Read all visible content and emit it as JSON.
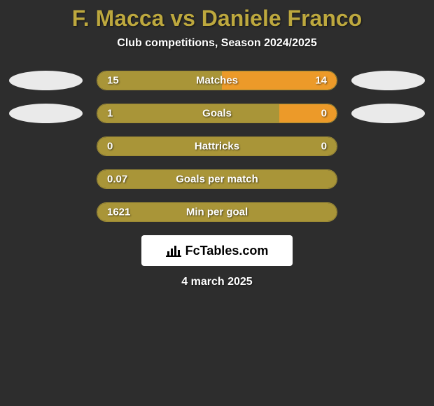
{
  "title": "F. Macca vs Daniele Franco",
  "subtitle": "Club competitions, Season 2024/2025",
  "date": "4 march 2025",
  "brand": {
    "name": "FcTables.com"
  },
  "colors": {
    "accent_left": "#a99538",
    "accent_right": "#ec9a29",
    "bar_border": "#9c8a35",
    "background": "#2d2d2d",
    "avatar_bg": "#eaeaea",
    "text": "#ffffff"
  },
  "stats": [
    {
      "label": "Matches",
      "left_value": "15",
      "right_value": "14",
      "left_pct": 52,
      "right_pct": 48,
      "left_color": "#a99538",
      "right_color": "#ec9a29",
      "show_avatars": true
    },
    {
      "label": "Goals",
      "left_value": "1",
      "right_value": "0",
      "left_pct": 76,
      "right_pct": 24,
      "left_color": "#a99538",
      "right_color": "#ec9a29",
      "show_avatars": true
    },
    {
      "label": "Hattricks",
      "left_value": "0",
      "right_value": "0",
      "left_pct": 100,
      "right_pct": 0,
      "left_color": "#a99538",
      "right_color": "#ec9a29",
      "show_avatars": false
    },
    {
      "label": "Goals per match",
      "left_value": "0.07",
      "right_value": "",
      "left_pct": 100,
      "right_pct": 0,
      "left_color": "#a99538",
      "right_color": "#ec9a29",
      "show_avatars": false
    },
    {
      "label": "Min per goal",
      "left_value": "1621",
      "right_value": "",
      "left_pct": 100,
      "right_pct": 0,
      "left_color": "#a99538",
      "right_color": "#ec9a29",
      "show_avatars": false
    }
  ]
}
